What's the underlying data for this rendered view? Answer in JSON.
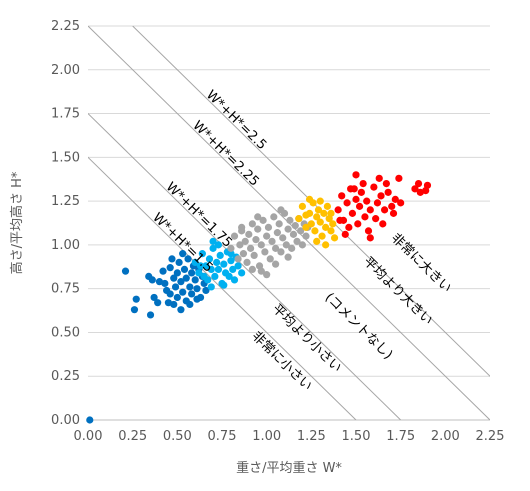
{
  "chart_data": {
    "type": "scatter",
    "title": "",
    "xlabel": "重さ/平均重さ W*",
    "ylabel": "高さ/平均高さ H*",
    "xlim": [
      0,
      2.25
    ],
    "ylim": [
      0,
      2.25
    ],
    "x_ticks": [
      "0.00",
      "0.25",
      "0.50",
      "0.75",
      "1.00",
      "1.25",
      "1.50",
      "1.75",
      "2.00",
      "2.25"
    ],
    "y_ticks": [
      "0.00",
      "0.25",
      "0.50",
      "0.75",
      "1.00",
      "1.25",
      "1.50",
      "1.75",
      "2.00",
      "2.25"
    ],
    "grid": "horizontal",
    "reference_lines": [
      {
        "sum": 1.5,
        "label": "W*+H*=1.5"
      },
      {
        "sum": 1.75,
        "label": "W*+H*=1.75"
      },
      {
        "sum": 2.25,
        "label": "W*+H*=2.25"
      },
      {
        "sum": 2.5,
        "label": "W*+H*=2.5"
      }
    ],
    "region_labels": [
      {
        "label": "非常に大きい",
        "x": 1.85,
        "y": 0.88
      },
      {
        "label": "平均より大きい",
        "x": 1.72,
        "y": 0.72
      },
      {
        "label": "(コメントなし)",
        "x": 1.5,
        "y": 0.52
      },
      {
        "label": "平均より小さい",
        "x": 1.21,
        "y": 0.45
      },
      {
        "label": "非常に小さい",
        "x": 1.07,
        "y": 0.32
      }
    ],
    "series": [
      {
        "color": "#0070c0",
        "points": [
          [
            0.01,
            0.0
          ],
          [
            0.21,
            0.85
          ],
          [
            0.26,
            0.63
          ],
          [
            0.27,
            0.69
          ],
          [
            0.35,
            0.6
          ],
          [
            0.34,
            0.82
          ],
          [
            0.36,
            0.8
          ],
          [
            0.37,
            0.7
          ],
          [
            0.42,
            0.85
          ],
          [
            0.43,
            0.78
          ],
          [
            0.45,
            0.67
          ],
          [
            0.46,
            0.72
          ],
          [
            0.46,
            0.87
          ],
          [
            0.48,
            0.81
          ],
          [
            0.49,
            0.76
          ],
          [
            0.5,
            0.84
          ],
          [
            0.5,
            0.7
          ],
          [
            0.51,
            0.9
          ],
          [
            0.52,
            0.79
          ],
          [
            0.53,
            0.73
          ],
          [
            0.54,
            0.86
          ],
          [
            0.55,
            0.81
          ],
          [
            0.55,
            0.68
          ],
          [
            0.56,
            0.92
          ],
          [
            0.57,
            0.76
          ],
          [
            0.58,
            0.84
          ],
          [
            0.58,
            0.72
          ],
          [
            0.59,
            0.88
          ],
          [
            0.6,
            0.8
          ],
          [
            0.61,
            0.75
          ],
          [
            0.62,
            0.86
          ],
          [
            0.63,
            0.7
          ],
          [
            0.64,
            0.82
          ],
          [
            0.65,
            0.78
          ],
          [
            0.66,
            0.74
          ],
          [
            0.48,
            0.66
          ],
          [
            0.52,
            0.63
          ],
          [
            0.47,
            0.92
          ],
          [
            0.53,
            0.95
          ],
          [
            0.44,
            0.74
          ],
          [
            0.4,
            0.79
          ],
          [
            0.39,
            0.67
          ],
          [
            0.57,
            0.66
          ],
          [
            0.61,
            0.69
          ]
        ]
      },
      {
        "color": "#00b0f0",
        "points": [
          [
            0.6,
            0.9
          ],
          [
            0.62,
            0.84
          ],
          [
            0.64,
            0.95
          ],
          [
            0.66,
            0.88
          ],
          [
            0.67,
            0.8
          ],
          [
            0.68,
            0.92
          ],
          [
            0.69,
            0.86
          ],
          [
            0.7,
            0.98
          ],
          [
            0.71,
            0.82
          ],
          [
            0.72,
            0.9
          ],
          [
            0.73,
            0.86
          ],
          [
            0.74,
            0.94
          ],
          [
            0.75,
            0.78
          ],
          [
            0.76,
            0.89
          ],
          [
            0.77,
            0.84
          ],
          [
            0.78,
            0.96
          ],
          [
            0.79,
            0.82
          ],
          [
            0.8,
            0.91
          ],
          [
            0.81,
            0.86
          ],
          [
            0.82,
            0.8
          ],
          [
            0.84,
            0.88
          ],
          [
            0.7,
            1.02
          ],
          [
            0.65,
            0.82
          ],
          [
            0.73,
            1.0
          ],
          [
            0.86,
            0.84
          ],
          [
            0.76,
            0.77
          ],
          [
            0.69,
            0.76
          ],
          [
            0.8,
            0.95
          ],
          [
            0.63,
            0.88
          ],
          [
            0.83,
            0.93
          ]
        ]
      },
      {
        "color": "#a5a5a5",
        "points": [
          [
            0.8,
            0.98
          ],
          [
            0.82,
            1.05
          ],
          [
            0.84,
            0.92
          ],
          [
            0.85,
            1.0
          ],
          [
            0.86,
            1.08
          ],
          [
            0.87,
            0.95
          ],
          [
            0.88,
            1.02
          ],
          [
            0.89,
            0.9
          ],
          [
            0.9,
            1.06
          ],
          [
            0.91,
            0.98
          ],
          [
            0.92,
            1.12
          ],
          [
            0.93,
            0.94
          ],
          [
            0.94,
            1.03
          ],
          [
            0.95,
            1.09
          ],
          [
            0.96,
            0.88
          ],
          [
            0.97,
            1.0
          ],
          [
            0.98,
            1.14
          ],
          [
            0.99,
            0.96
          ],
          [
            1.0,
            1.05
          ],
          [
            1.01,
            1.1
          ],
          [
            1.02,
            0.92
          ],
          [
            1.03,
            1.02
          ],
          [
            1.04,
            1.16
          ],
          [
            1.05,
            0.98
          ],
          [
            1.06,
            1.07
          ],
          [
            1.07,
            1.12
          ],
          [
            1.08,
            0.96
          ],
          [
            1.09,
            1.04
          ],
          [
            1.1,
            1.18
          ],
          [
            1.11,
            1.0
          ],
          [
            1.12,
            1.09
          ],
          [
            1.13,
            1.14
          ],
          [
            1.14,
            0.98
          ],
          [
            1.15,
            1.06
          ],
          [
            1.16,
            1.11
          ],
          [
            1.17,
            1.02
          ],
          [
            1.18,
            1.15
          ],
          [
            1.19,
            1.08
          ],
          [
            1.2,
            1.0
          ],
          [
            1.21,
            1.12
          ],
          [
            1.22,
            1.05
          ],
          [
            0.92,
            0.86
          ],
          [
            0.97,
            0.85
          ],
          [
            1.05,
            0.89
          ],
          [
            1.0,
            0.83
          ],
          [
            1.12,
            0.93
          ],
          [
            0.86,
            1.1
          ],
          [
            0.95,
            1.16
          ],
          [
            1.08,
            1.2
          ],
          [
            1.23,
            1.1
          ]
        ]
      },
      {
        "color": "#ffc000",
        "points": [
          [
            1.18,
            1.15
          ],
          [
            1.2,
            1.22
          ],
          [
            1.22,
            1.1
          ],
          [
            1.24,
            1.18
          ],
          [
            1.25,
            1.12
          ],
          [
            1.26,
            1.24
          ],
          [
            1.27,
            1.08
          ],
          [
            1.28,
            1.16
          ],
          [
            1.29,
            1.2
          ],
          [
            1.3,
            1.13
          ],
          [
            1.31,
            1.05
          ],
          [
            1.32,
            1.18
          ],
          [
            1.33,
            1.1
          ],
          [
            1.34,
            1.22
          ],
          [
            1.35,
            1.15
          ],
          [
            1.36,
            1.08
          ],
          [
            1.37,
            1.12
          ],
          [
            1.38,
            1.04
          ],
          [
            1.28,
            1.02
          ],
          [
            1.24,
            1.26
          ],
          [
            1.3,
            1.25
          ],
          [
            1.33,
            1.0
          ],
          [
            1.36,
            1.18
          ],
          [
            1.22,
            1.17
          ]
        ]
      },
      {
        "color": "#ff0000",
        "points": [
          [
            1.4,
            1.2
          ],
          [
            1.42,
            1.28
          ],
          [
            1.43,
            1.14
          ],
          [
            1.45,
            1.24
          ],
          [
            1.46,
            1.1
          ],
          [
            1.47,
            1.32
          ],
          [
            1.48,
            1.18
          ],
          [
            1.5,
            1.26
          ],
          [
            1.51,
            1.12
          ],
          [
            1.52,
            1.22
          ],
          [
            1.53,
            1.3
          ],
          [
            1.55,
            1.16
          ],
          [
            1.56,
            1.25
          ],
          [
            1.57,
            1.08
          ],
          [
            1.58,
            1.2
          ],
          [
            1.6,
            1.33
          ],
          [
            1.61,
            1.15
          ],
          [
            1.62,
            1.24
          ],
          [
            1.64,
            1.28
          ],
          [
            1.65,
            1.12
          ],
          [
            1.66,
            1.2
          ],
          [
            1.68,
            1.3
          ],
          [
            1.7,
            1.22
          ],
          [
            1.72,
            1.26
          ],
          [
            1.74,
            1.38
          ],
          [
            1.75,
            1.24
          ],
          [
            1.85,
            1.35
          ],
          [
            1.83,
            1.32
          ],
          [
            1.86,
            1.3
          ],
          [
            1.89,
            1.31
          ],
          [
            1.9,
            1.34
          ],
          [
            1.5,
            1.4
          ],
          [
            1.54,
            1.35
          ],
          [
            1.63,
            1.38
          ],
          [
            1.44,
            1.06
          ],
          [
            1.58,
            1.04
          ],
          [
            1.67,
            1.35
          ],
          [
            1.71,
            1.18
          ],
          [
            1.49,
            1.32
          ],
          [
            1.41,
            1.14
          ]
        ]
      }
    ]
  }
}
